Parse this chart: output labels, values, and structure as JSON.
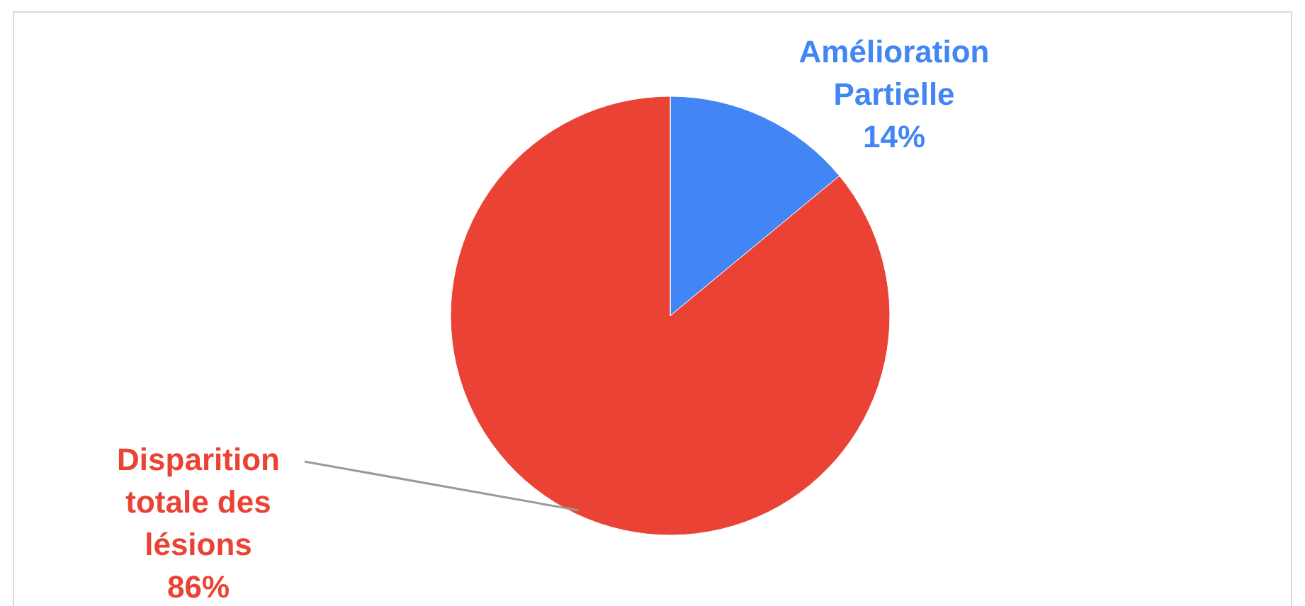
{
  "chart_data": {
    "type": "pie",
    "categories": [
      "Amélioration Partielle",
      "Disparition totale des lésions"
    ],
    "values": [
      14,
      86
    ],
    "colors": [
      "#4285f4",
      "#ea4335"
    ],
    "value_labels": [
      "14%",
      "86%"
    ]
  }
}
